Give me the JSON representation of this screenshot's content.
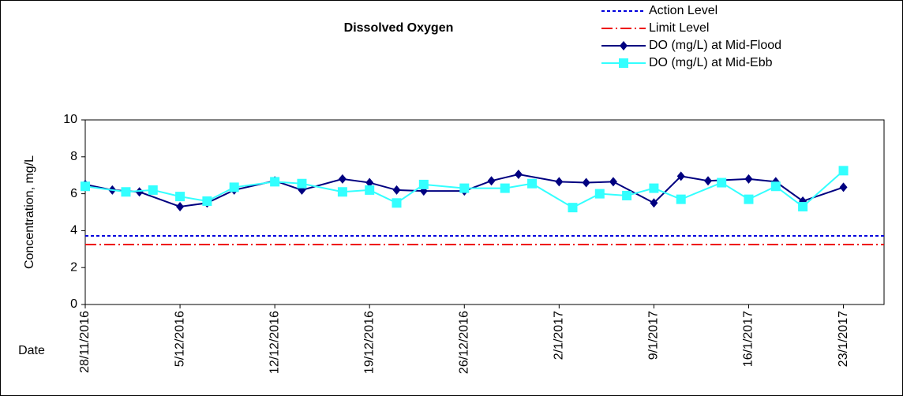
{
  "chart_data": {
    "type": "line",
    "title": "Dissolved Oxygen",
    "x_label": "Date",
    "y_label": "Concentration, mg/L",
    "xlim": [
      "2016-11-28",
      "2017-01-26"
    ],
    "xticks": [
      {
        "value": "2016-11-28",
        "label": "28/11/2016"
      },
      {
        "value": "2016-12-05",
        "label": "5/12/2016"
      },
      {
        "value": "2016-12-12",
        "label": "12/12/2016"
      },
      {
        "value": "2016-12-19",
        "label": "19/12/2016"
      },
      {
        "value": "2016-12-26",
        "label": "26/12/2016"
      },
      {
        "value": "2017-01-02",
        "label": "2/1/2017"
      },
      {
        "value": "2017-01-09",
        "label": "9/1/2017"
      },
      {
        "value": "2017-01-16",
        "label": "16/1/2017"
      },
      {
        "value": "2017-01-23",
        "label": "23/1/2017"
      }
    ],
    "ylim": [
      0,
      10
    ],
    "yticks": [
      0,
      2,
      4,
      6,
      8,
      10
    ],
    "reference_lines": [
      {
        "name": "Action Level",
        "value": 3.72,
        "color": "#0000dd",
        "dash": "4,3"
      },
      {
        "name": "Limit Level",
        "value": 3.25,
        "color": "#ee0000",
        "dash": "14,4,2,4"
      }
    ],
    "series": [
      {
        "name": "DO (mg/L) at Mid-Flood",
        "color": "#000080",
        "marker": "diamond",
        "x": [
          "2016-11-28",
          "2016-11-30",
          "2016-12-02",
          "2016-12-05",
          "2016-12-07",
          "2016-12-09",
          "2016-12-12",
          "2016-12-14",
          "2016-12-17",
          "2016-12-19",
          "2016-12-21",
          "2016-12-23",
          "2016-12-26",
          "2016-12-28",
          "2016-12-30",
          "2017-01-02",
          "2017-01-04",
          "2017-01-06",
          "2017-01-09",
          "2017-01-11",
          "2017-01-13",
          "2017-01-16",
          "2017-01-18",
          "2017-01-20",
          "2017-01-23"
        ],
        "values": [
          6.5,
          6.2,
          6.1,
          5.3,
          5.5,
          6.2,
          6.7,
          6.2,
          6.8,
          6.6,
          6.2,
          6.15,
          6.15,
          6.7,
          7.05,
          6.65,
          6.6,
          6.65,
          5.5,
          6.95,
          6.7,
          6.8,
          6.65,
          5.6,
          6.35
        ]
      },
      {
        "name": "DO (mg/L) at Mid-Ebb",
        "color": "#33ffff",
        "marker": "square",
        "x": [
          "2016-11-28",
          "2016-12-01",
          "2016-12-03",
          "2016-12-05",
          "2016-12-07",
          "2016-12-09",
          "2016-12-12",
          "2016-12-14",
          "2016-12-17",
          "2016-12-19",
          "2016-12-21",
          "2016-12-23",
          "2016-12-26",
          "2016-12-29",
          "2016-12-31",
          "2017-01-03",
          "2017-01-05",
          "2017-01-07",
          "2017-01-09",
          "2017-01-11",
          "2017-01-14",
          "2017-01-16",
          "2017-01-18",
          "2017-01-20",
          "2017-01-23"
        ],
        "values": [
          6.4,
          6.1,
          6.2,
          5.85,
          5.6,
          6.35,
          6.65,
          6.55,
          6.1,
          6.2,
          5.5,
          6.5,
          6.3,
          6.3,
          6.55,
          5.25,
          6.0,
          5.9,
          6.3,
          5.7,
          6.6,
          5.7,
          6.4,
          5.3,
          7.25
        ]
      }
    ]
  }
}
